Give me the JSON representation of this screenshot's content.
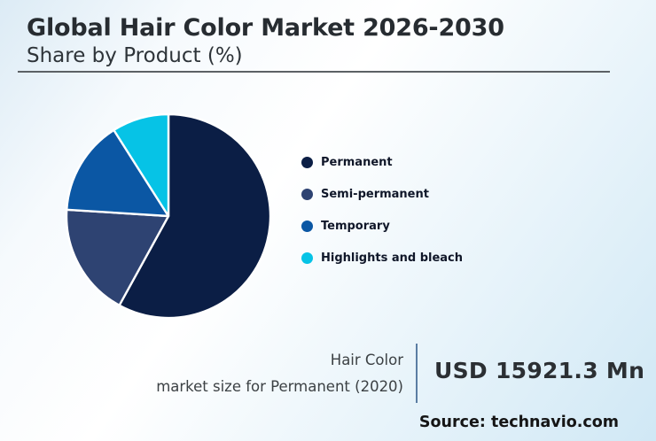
{
  "header": {
    "title": "Global Hair Color Market 2026-2030",
    "subtitle": "Share by Product (%)"
  },
  "chart_data": {
    "type": "pie",
    "title": "Global Hair Color Market 2026-2030",
    "subtitle": "Share by Product (%)",
    "units": "%",
    "direction": "clockwise",
    "start_angle_deg": 0,
    "legend_position": "right",
    "slice_border_color": "#ffffff",
    "series": [
      {
        "name": "Permanent",
        "value": 58,
        "color": "#0B1E45"
      },
      {
        "name": "Semi-permanent",
        "value": 18,
        "color": "#2E4372"
      },
      {
        "name": "Temporary",
        "value": 15,
        "color": "#0B57A4"
      },
      {
        "name": "Highlights and bleach",
        "value": 9,
        "color": "#06C3E6"
      }
    ]
  },
  "stat": {
    "label_line1": "Hair Color",
    "label_line2": "market size for Permanent (2020)",
    "value": "USD 15921.3 Mn"
  },
  "source": {
    "text": "Source: technavio.com"
  }
}
